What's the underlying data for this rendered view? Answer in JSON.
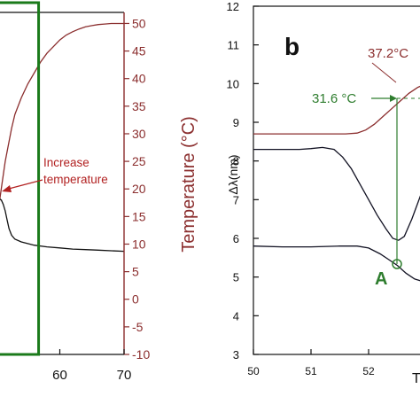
{
  "chart_data": [
    {
      "type": "line",
      "panel": "left (cropped)",
      "xlabel": "",
      "xlim": [
        50,
        70
      ],
      "x_ticks": [
        60,
        70
      ],
      "ylabel_right": "Temperature (°C)",
      "y_right_lim": [
        -10,
        52
      ],
      "y_right_ticks": [
        -10,
        -5,
        0,
        5,
        10,
        15,
        20,
        25,
        30,
        35,
        40,
        45,
        50
      ],
      "annotation": {
        "lines": [
          "Increase",
          "temperature"
        ],
        "color": "#b22222"
      },
      "highlight_box": {
        "x_end": 56.7,
        "color": "#1a7a1a"
      },
      "series": [
        {
          "color": "#8b2e2e",
          "axis": "right",
          "points": [
            [
              50,
              11
            ],
            [
              50.4,
              16
            ],
            [
              51.0,
              21
            ],
            [
              51.5,
              25
            ],
            [
              52.0,
              28
            ],
            [
              52.5,
              31
            ],
            [
              53,
              33.5
            ],
            [
              54,
              36.5
            ],
            [
              55,
              39
            ],
            [
              56,
              41
            ],
            [
              57,
              43
            ],
            [
              58,
              44.6
            ],
            [
              59,
              45.8
            ],
            [
              60,
              47
            ],
            [
              61,
              47.9
            ],
            [
              62,
              48.5
            ],
            [
              63,
              49
            ],
            [
              64,
              49.4
            ],
            [
              65,
              49.6
            ],
            [
              66,
              49.8
            ],
            [
              67,
              49.9
            ],
            [
              68,
              50
            ],
            [
              70,
              50
            ]
          ]
        },
        {
          "color": "#111111",
          "axis": "right",
          "points": [
            [
              50.0,
              17.8
            ],
            [
              50.3,
              18.0
            ],
            [
              50.6,
              18.2
            ],
            [
              50.9,
              18.0
            ],
            [
              51.2,
              17.2
            ],
            [
              51.5,
              16.0
            ],
            [
              51.8,
              14.4
            ],
            [
              52.1,
              12.8
            ],
            [
              52.5,
              11.6
            ],
            [
              53,
              10.9
            ],
            [
              54,
              10.4
            ],
            [
              55,
              10.1
            ],
            [
              56,
              9.8
            ],
            [
              58,
              9.5
            ],
            [
              60,
              9.3
            ],
            [
              62,
              9.1
            ],
            [
              64,
              9.0
            ],
            [
              66,
              8.9
            ],
            [
              68,
              8.8
            ],
            [
              70,
              8.7
            ]
          ]
        }
      ]
    },
    {
      "type": "line",
      "panel": "b",
      "panel_label": "b",
      "ylabel": "Δλ(nm)",
      "xlim": [
        50,
        53.3
      ],
      "ylim": [
        3,
        12
      ],
      "x_ticks": [
        50,
        51,
        52
      ],
      "x_tick_labels": [
        "50",
        "51",
        "52"
      ],
      "y_ticks": [
        3,
        4,
        5,
        6,
        7,
        8,
        9,
        10,
        11,
        12
      ],
      "xlabel_partial": "T",
      "annotations": [
        {
          "text": "37.2°C",
          "color": "#8b2e2e"
        },
        {
          "text": "31.6 °C",
          "color": "#2e7d2e"
        },
        {
          "text": "A",
          "color": "#2e7d2e",
          "x": 52.48,
          "y": 5.4
        }
      ],
      "series": [
        {
          "color": "#8b2e2e",
          "points": [
            [
              50.0,
              8.7
            ],
            [
              51.0,
              8.7
            ],
            [
              51.6,
              8.7
            ],
            [
              51.8,
              8.72
            ],
            [
              51.95,
              8.8
            ],
            [
              52.1,
              8.95
            ],
            [
              52.25,
              9.15
            ],
            [
              52.4,
              9.35
            ],
            [
              52.55,
              9.55
            ],
            [
              52.7,
              9.75
            ],
            [
              52.85,
              9.9
            ],
            [
              53.0,
              10.0
            ],
            [
              53.15,
              10.1
            ],
            [
              53.3,
              10.15
            ]
          ]
        },
        {
          "color": "#111122",
          "points": [
            [
              50.0,
              8.3
            ],
            [
              50.5,
              8.3
            ],
            [
              50.8,
              8.3
            ],
            [
              51.0,
              8.32
            ],
            [
              51.2,
              8.35
            ],
            [
              51.4,
              8.3
            ],
            [
              51.55,
              8.1
            ],
            [
              51.7,
              7.8
            ],
            [
              51.85,
              7.4
            ],
            [
              52.0,
              7.0
            ],
            [
              52.15,
              6.6
            ],
            [
              52.3,
              6.25
            ],
            [
              52.42,
              6.0
            ],
            [
              52.52,
              5.95
            ],
            [
              52.62,
              6.05
            ],
            [
              52.75,
              6.5
            ],
            [
              52.9,
              7.1
            ],
            [
              53.05,
              7.7
            ],
            [
              53.2,
              8.2
            ],
            [
              53.3,
              8.4
            ]
          ]
        },
        {
          "color": "#111122",
          "points": [
            [
              50.0,
              5.8
            ],
            [
              50.5,
              5.78
            ],
            [
              51.0,
              5.78
            ],
            [
              51.5,
              5.8
            ],
            [
              51.8,
              5.8
            ],
            [
              52.0,
              5.75
            ],
            [
              52.2,
              5.6
            ],
            [
              52.35,
              5.45
            ],
            [
              52.5,
              5.3
            ],
            [
              52.65,
              5.1
            ],
            [
              52.8,
              4.95
            ],
            [
              52.95,
              4.88
            ],
            [
              53.1,
              4.9
            ],
            [
              53.3,
              4.95
            ]
          ]
        }
      ]
    }
  ]
}
